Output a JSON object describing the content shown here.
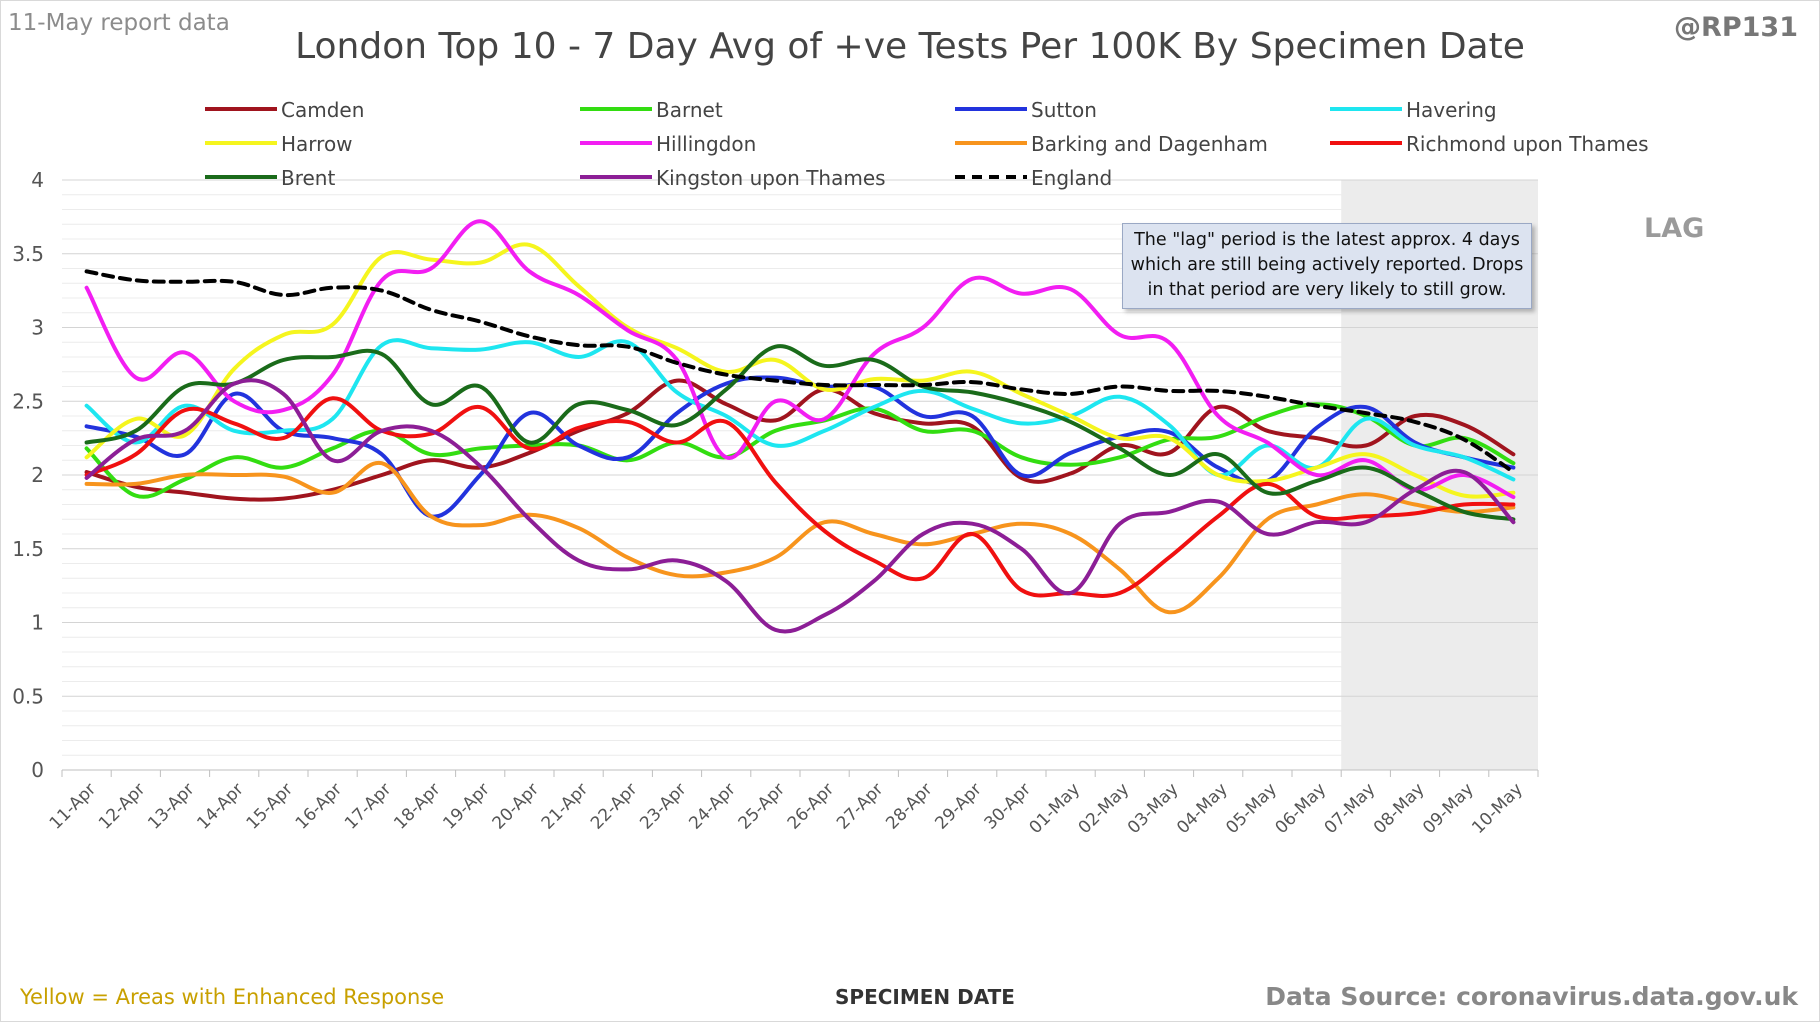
{
  "header": {
    "report_date": "11-May report data",
    "handle": "@RP131"
  },
  "footer": {
    "note": "Yellow = Areas with Enhanced Response",
    "source": "Data Source: coronavirus.data.gov.uk"
  },
  "annotation": {
    "note": "The \"lag\" period is the latest approx. 4 days which are still being actively reported. Drops in that period are very likely to still grow.",
    "lag_label": "LAG"
  },
  "chart_data": {
    "type": "line",
    "title": "London Top 10 - 7 Day Avg of +ve Tests Per 100K By Specimen Date",
    "xlabel": "SPECIMEN DATE",
    "ylabel": "",
    "ylim": [
      0,
      4
    ],
    "yticks": [
      "0",
      "0.5",
      "1",
      "1.5",
      "2",
      "2.5",
      "3",
      "3.5",
      "4"
    ],
    "grid": true,
    "legend_position": "top",
    "lag_start": "07-May",
    "categories": [
      "11-Apr",
      "12-Apr",
      "13-Apr",
      "14-Apr",
      "15-Apr",
      "16-Apr",
      "17-Apr",
      "18-Apr",
      "19-Apr",
      "20-Apr",
      "21-Apr",
      "22-Apr",
      "23-Apr",
      "24-Apr",
      "25-Apr",
      "26-Apr",
      "27-Apr",
      "28-Apr",
      "29-Apr",
      "30-Apr",
      "01-May",
      "02-May",
      "03-May",
      "04-May",
      "05-May",
      "06-May",
      "07-May",
      "08-May",
      "09-May",
      "10-May"
    ],
    "series": [
      {
        "name": "Camden",
        "color": "#a0141e",
        "dashed": false,
        "values": [
          2.02,
          1.92,
          1.88,
          1.84,
          1.84,
          1.9,
          2.0,
          2.1,
          2.05,
          2.15,
          2.3,
          2.42,
          2.64,
          2.48,
          2.37,
          2.58,
          2.42,
          2.35,
          2.33,
          1.98,
          2.01,
          2.2,
          2.15,
          2.46,
          2.3,
          2.25,
          2.2,
          2.4,
          2.34,
          2.14
        ]
      },
      {
        "name": "Barnet",
        "color": "#33dd11",
        "dashed": false,
        "values": [
          2.18,
          1.86,
          1.97,
          2.12,
          2.05,
          2.18,
          2.3,
          2.14,
          2.18,
          2.2,
          2.2,
          2.1,
          2.22,
          2.12,
          2.3,
          2.37,
          2.45,
          2.3,
          2.3,
          2.12,
          2.07,
          2.12,
          2.24,
          2.26,
          2.4,
          2.48,
          2.4,
          2.2,
          2.25,
          2.08
        ]
      },
      {
        "name": "Sutton",
        "color": "#2233dd",
        "dashed": false,
        "values": [
          2.33,
          2.26,
          2.14,
          2.55,
          2.3,
          2.25,
          2.14,
          1.72,
          2.0,
          2.42,
          2.2,
          2.12,
          2.42,
          2.62,
          2.66,
          2.6,
          2.6,
          2.4,
          2.4,
          2.0,
          2.15,
          2.26,
          2.29,
          2.05,
          1.96,
          2.32,
          2.46,
          2.22,
          2.12,
          2.05
        ]
      },
      {
        "name": "Havering",
        "color": "#1ee6f0",
        "dashed": false,
        "values": [
          2.47,
          2.22,
          2.47,
          2.3,
          2.3,
          2.38,
          2.88,
          2.86,
          2.85,
          2.9,
          2.8,
          2.9,
          2.56,
          2.4,
          2.2,
          2.3,
          2.46,
          2.57,
          2.45,
          2.35,
          2.4,
          2.53,
          2.34,
          2.0,
          2.2,
          2.05,
          2.38,
          2.2,
          2.12,
          1.97
        ]
      },
      {
        "name": "Harrow",
        "color": "#f5f51e",
        "dashed": false,
        "values": [
          2.12,
          2.38,
          2.27,
          2.72,
          2.95,
          3.02,
          3.48,
          3.46,
          3.44,
          3.56,
          3.28,
          3.0,
          2.86,
          2.7,
          2.78,
          2.58,
          2.65,
          2.64,
          2.7,
          2.55,
          2.4,
          2.25,
          2.25,
          2.0,
          1.96,
          2.05,
          2.14,
          2.0,
          1.86,
          1.88
        ]
      },
      {
        "name": "Hillingdon",
        "color": "#f21ef2",
        "dashed": false,
        "values": [
          3.27,
          2.66,
          2.83,
          2.5,
          2.44,
          2.68,
          3.32,
          3.4,
          3.72,
          3.38,
          3.22,
          2.98,
          2.78,
          2.12,
          2.5,
          2.38,
          2.82,
          3.0,
          3.33,
          3.23,
          3.26,
          2.95,
          2.9,
          2.4,
          2.22,
          2.0,
          2.1,
          1.9,
          2.0,
          1.85
        ]
      },
      {
        "name": "Barking and Dagenham",
        "color": "#f7941d",
        "dashed": false,
        "values": [
          1.94,
          1.94,
          2.0,
          2.0,
          1.99,
          1.88,
          2.08,
          1.72,
          1.66,
          1.73,
          1.64,
          1.44,
          1.32,
          1.34,
          1.44,
          1.68,
          1.6,
          1.53,
          1.6,
          1.67,
          1.6,
          1.36,
          1.07,
          1.3,
          1.7,
          1.8,
          1.87,
          1.8,
          1.75,
          1.78
        ]
      },
      {
        "name": "Richmond upon Thames",
        "color": "#f01010",
        "dashed": false,
        "values": [
          2.0,
          2.14,
          2.44,
          2.35,
          2.25,
          2.52,
          2.3,
          2.28,
          2.46,
          2.18,
          2.32,
          2.36,
          2.22,
          2.36,
          1.95,
          1.62,
          1.42,
          1.3,
          1.6,
          1.22,
          1.2,
          1.2,
          1.44,
          1.72,
          1.94,
          1.72,
          1.72,
          1.74,
          1.8,
          1.8
        ]
      },
      {
        "name": "Brent",
        "color": "#1a6b1a",
        "dashed": false,
        "values": [
          2.22,
          2.3,
          2.6,
          2.62,
          2.78,
          2.8,
          2.82,
          2.48,
          2.6,
          2.22,
          2.48,
          2.44,
          2.34,
          2.58,
          2.87,
          2.74,
          2.78,
          2.6,
          2.56,
          2.48,
          2.36,
          2.18,
          2.0,
          2.14,
          1.88,
          1.96,
          2.05,
          1.9,
          1.75,
          1.7
        ]
      },
      {
        "name": "Kingston upon Thames",
        "color": "#8c1e96",
        "dashed": false,
        "values": [
          1.98,
          2.24,
          2.3,
          2.62,
          2.55,
          2.1,
          2.3,
          2.3,
          2.06,
          1.7,
          1.42,
          1.36,
          1.42,
          1.28,
          0.95,
          1.05,
          1.28,
          1.6,
          1.67,
          1.5,
          1.2,
          1.67,
          1.75,
          1.82,
          1.6,
          1.68,
          1.68,
          1.9,
          2.02,
          1.68
        ]
      },
      {
        "name": "England",
        "color": "#000000",
        "dashed": true,
        "values": [
          3.38,
          3.32,
          3.31,
          3.31,
          3.22,
          3.27,
          3.25,
          3.12,
          3.04,
          2.94,
          2.88,
          2.87,
          2.76,
          2.68,
          2.64,
          2.61,
          2.61,
          2.61,
          2.63,
          2.58,
          2.55,
          2.6,
          2.57,
          2.57,
          2.53,
          2.47,
          2.42,
          2.36,
          2.24,
          2.02
        ]
      }
    ]
  }
}
